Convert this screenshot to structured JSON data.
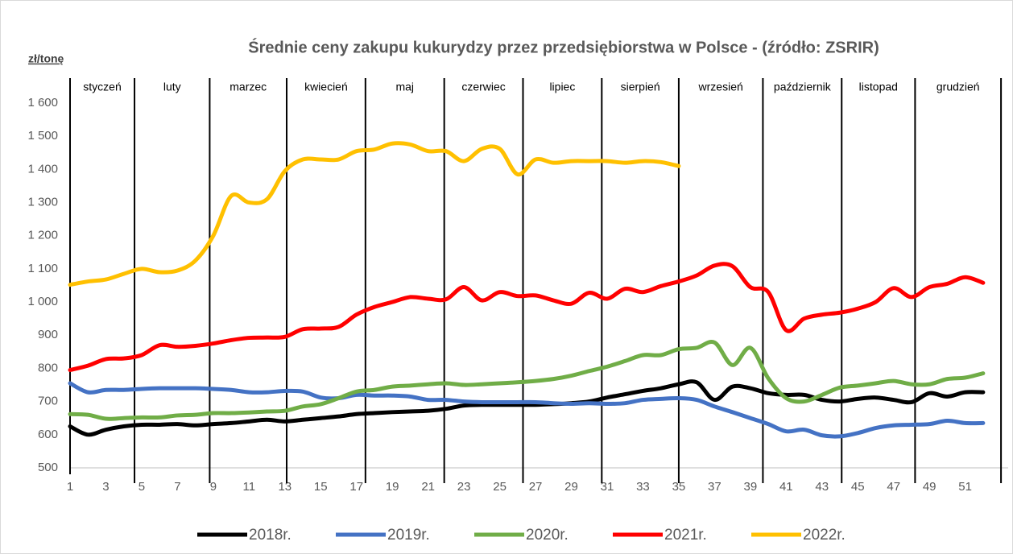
{
  "chart_data": {
    "type": "line",
    "title": "Średnie ceny zakupu kukurydzy przez przedsiębiorstwa w Polsce - (źródło: ZSRIR)",
    "y_label": "zł/tonę",
    "x": [
      1,
      2,
      3,
      4,
      5,
      6,
      7,
      8,
      9,
      10,
      11,
      12,
      13,
      14,
      15,
      16,
      17,
      18,
      19,
      20,
      21,
      22,
      23,
      24,
      25,
      26,
      27,
      28,
      29,
      30,
      31,
      32,
      33,
      34,
      35,
      36,
      37,
      38,
      39,
      40,
      41,
      42,
      43,
      44,
      45,
      46,
      47,
      48,
      49,
      50,
      51,
      52
    ],
    "xlim": [
      1,
      53.4
    ],
    "xticks": [
      1,
      3,
      5,
      7,
      9,
      11,
      13,
      15,
      17,
      19,
      21,
      23,
      25,
      27,
      29,
      31,
      33,
      35,
      37,
      39,
      41,
      43,
      45,
      47,
      49,
      51
    ],
    "ylim": [
      500,
      1600
    ],
    "yticks": [
      500,
      600,
      700,
      800,
      900,
      {
        "value": 1000,
        "label": "1 000"
      },
      {
        "value": 1100,
        "label": "1 100"
      },
      {
        "value": 1200,
        "label": "1 200"
      },
      {
        "value": 1300,
        "label": "1 300"
      },
      {
        "value": 1400,
        "label": "1 400"
      },
      {
        "value": 1500,
        "label": "1 500"
      },
      {
        "value": 1600,
        "label": "1 600"
      }
    ],
    "months": [
      "styczeń",
      "luty",
      "marzec",
      "kwiecień",
      "maj",
      "czerwiec",
      "lipiec",
      "sierpień",
      "wrzesień",
      "październik",
      "listopad",
      "grudzień"
    ],
    "month_lines": [
      1,
      4.6,
      8.8,
      13.1,
      17.5,
      21.9,
      26.3,
      30.7,
      35,
      39.7,
      44.1,
      48.2,
      53
    ],
    "series": [
      {
        "name": "2018r.",
        "color": "#000000",
        "values": [
          625,
          600,
          615,
          625,
          630,
          630,
          632,
          628,
          632,
          635,
          640,
          645,
          640,
          645,
          650,
          655,
          662,
          665,
          668,
          670,
          672,
          678,
          688,
          690,
          690,
          690,
          690,
          692,
          695,
          700,
          712,
          722,
          732,
          740,
          752,
          758,
          705,
          745,
          740,
          725,
          720,
          720,
          705,
          700,
          708,
          712,
          705,
          698,
          725,
          715,
          728,
          728
        ]
      },
      {
        "name": "2019r.",
        "color": "#4472c4",
        "values": [
          755,
          728,
          735,
          735,
          738,
          740,
          740,
          740,
          738,
          735,
          728,
          728,
          732,
          730,
          712,
          710,
          720,
          718,
          718,
          715,
          705,
          705,
          700,
          698,
          698,
          698,
          698,
          695,
          693,
          695,
          693,
          695,
          705,
          708,
          710,
          705,
          685,
          668,
          650,
          632,
          610,
          615,
          598,
          595,
          605,
          620,
          628,
          630,
          632,
          642,
          635,
          635
        ]
      },
      {
        "name": "2020r.",
        "color": "#70ad47",
        "values": [
          662,
          660,
          648,
          650,
          652,
          652,
          658,
          660,
          665,
          665,
          667,
          670,
          672,
          685,
          692,
          710,
          730,
          735,
          745,
          748,
          752,
          755,
          750,
          752,
          755,
          758,
          762,
          768,
          778,
          792,
          805,
          822,
          840,
          840,
          858,
          862,
          878,
          810,
          862,
          770,
          710,
          700,
          720,
          742,
          748,
          755,
          762,
          752,
          752,
          768,
          772,
          785
        ]
      },
      {
        "name": "2021r.",
        "color": "#ff0000",
        "values": [
          795,
          808,
          828,
          830,
          840,
          870,
          865,
          868,
          875,
          885,
          892,
          893,
          895,
          918,
          920,
          925,
          962,
          985,
          1000,
          1015,
          1010,
          1008,
          1045,
          1005,
          1030,
          1018,
          1020,
          1005,
          995,
          1028,
          1010,
          1040,
          1030,
          1048,
          1062,
          1080,
          1110,
          1108,
          1045,
          1030,
          915,
          950,
          962,
          968,
          980,
          1000,
          1042,
          1015,
          1045,
          1055,
          1075,
          1058
        ]
      },
      {
        "name": "2022r.",
        "color": "#ffc000",
        "values": [
          1052,
          1062,
          1068,
          1085,
          1100,
          1090,
          1095,
          1125,
          1200,
          1320,
          1300,
          1310,
          1395,
          1430,
          1430,
          1430,
          1455,
          1460,
          1478,
          1475,
          1455,
          1455,
          1425,
          1462,
          1462,
          1385,
          1430,
          1420,
          1425,
          1425,
          1425,
          1420,
          1425,
          1422,
          1410,
          null,
          null,
          null,
          null,
          null,
          null,
          null,
          null,
          null,
          null,
          null,
          null,
          null,
          null,
          null,
          null,
          null
        ]
      }
    ]
  }
}
